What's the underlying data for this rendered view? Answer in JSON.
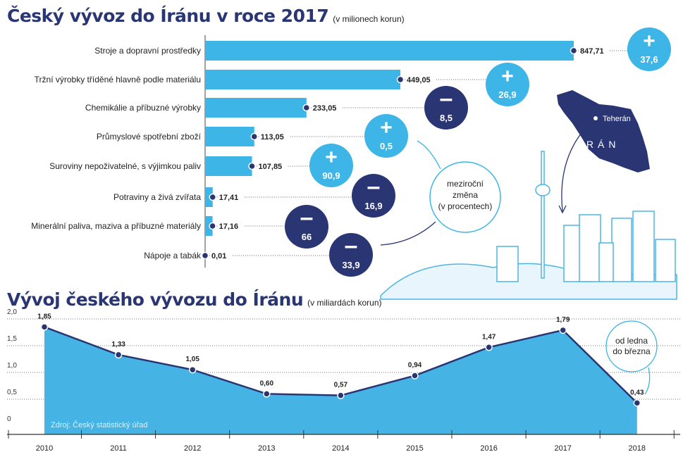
{
  "colors": {
    "dark": "#2a3674",
    "light": "#3db5e6",
    "area": "#45b4e4"
  },
  "chart_data": [
    {
      "type": "bar",
      "title": "Český vývoz do Íránu v roce 2017",
      "subtitle": "(v milionech korun)",
      "categories": [
        "Stroje a dopravní prostředky",
        "Tržní výrobky tříděné hlavně podle materiálu",
        "Chemikálie a příbuzné výrobky",
        "Průmyslové spotřební zboží",
        "Suroviny nepoživatelné, s výjimkou paliv",
        "Potraviny a živá zvířata",
        "Minerální paliva, maziva a příbuzné materiály",
        "Nápoje a tabák"
      ],
      "values": [
        847.71,
        449.05,
        233.05,
        113.05,
        107.85,
        17.41,
        17.16,
        0.01
      ],
      "value_labels": [
        "847,71",
        "449,05",
        "233,05",
        "113,05",
        "107,85",
        "17,41",
        "17,16",
        "0,01"
      ],
      "yoy_change": {
        "label": "meziroční změna (v procentech)",
        "signs": [
          "+",
          "+",
          "−",
          "+",
          "+",
          "−",
          "−",
          "−"
        ],
        "values": [
          "37,6",
          "26,9",
          "8,5",
          "0,5",
          "90,9",
          "16,9",
          "66",
          "33,9"
        ]
      }
    },
    {
      "type": "area",
      "title": "Vývoj českého vývozu do Íránu",
      "subtitle": "(v miliardách korun)",
      "x": [
        "2010",
        "2011",
        "2012",
        "2013",
        "2014",
        "2015",
        "2016",
        "2017",
        "2018"
      ],
      "values": [
        1.85,
        1.33,
        1.05,
        0.6,
        0.57,
        0.94,
        1.47,
        1.79,
        0.43
      ],
      "value_labels": [
        "1,85",
        "1,33",
        "1,05",
        "0,60",
        "0,57",
        "0,94",
        "1,47",
        "1,79",
        "0,43"
      ],
      "yticks": [
        "0",
        "0,5",
        "1,0",
        "1,5",
        "2,0"
      ],
      "ylim": [
        0,
        2
      ],
      "source": "Zdroj:  Český statistický úřad",
      "annotation": "od ledna do března"
    }
  ],
  "map": {
    "city": "Teherán",
    "country": "ÍRÁN"
  }
}
